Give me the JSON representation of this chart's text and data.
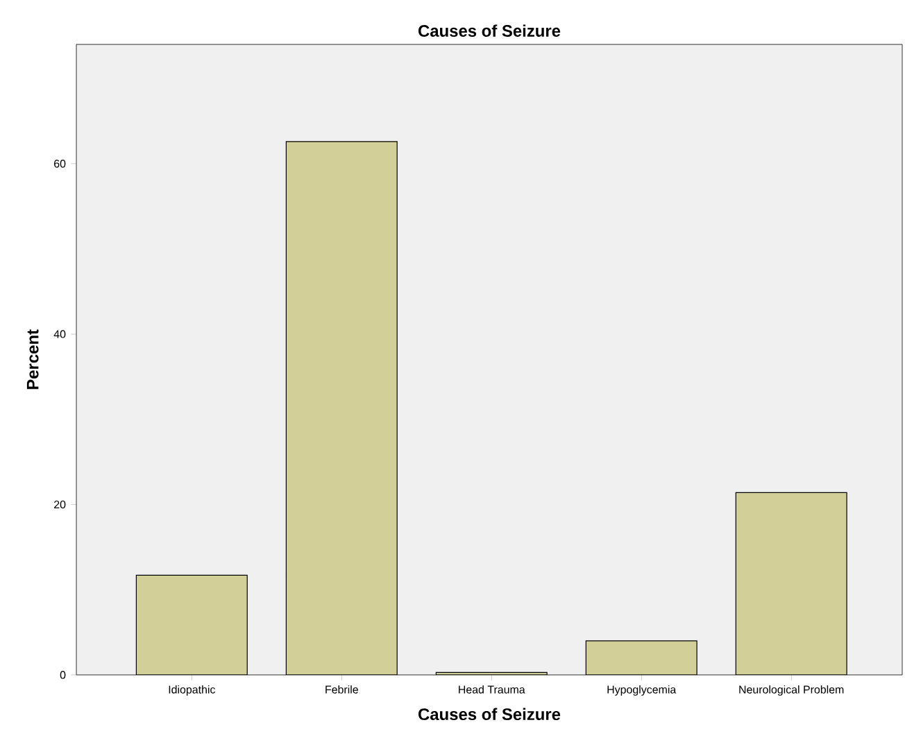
{
  "chart_data": {
    "type": "bar",
    "title": "Causes of  Seizure",
    "xlabel": "Causes of  Seizure",
    "ylabel": "Percent",
    "categories": [
      "Idiopathic",
      "Febrile",
      "Head Trauma",
      "Hypoglycemia",
      "Neurological Problem"
    ],
    "values": [
      11.7,
      62.6,
      0.3,
      4.0,
      21.4
    ],
    "color": "#d3cf98",
    "ylim": [
      0,
      74
    ],
    "yticks": [
      0,
      20,
      40,
      60
    ]
  }
}
